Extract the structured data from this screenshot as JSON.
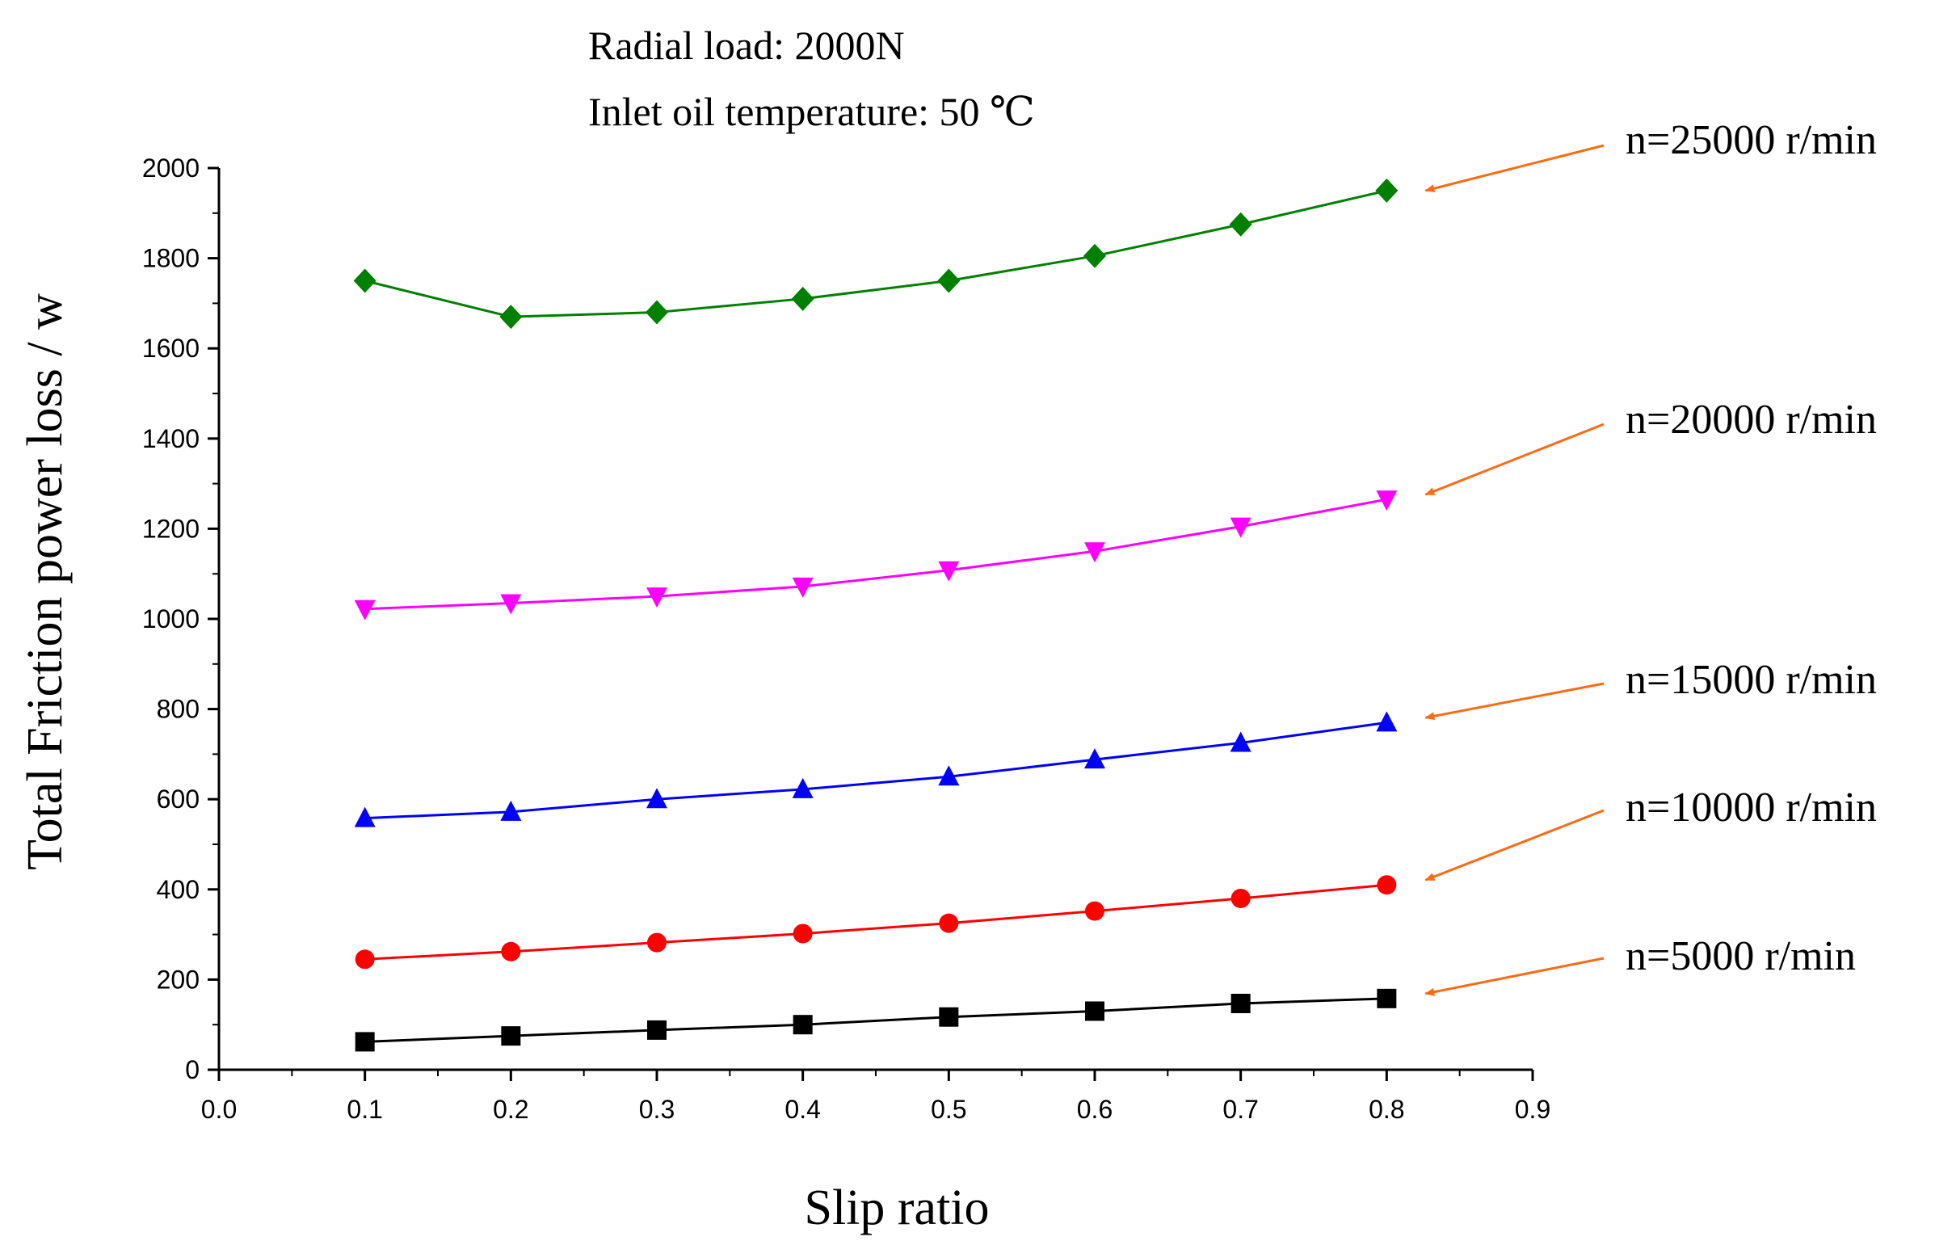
{
  "chart_data": {
    "type": "line",
    "title": "",
    "xlabel": "Slip ratio",
    "ylabel": "Total Friction power loss / w",
    "xlim": [
      0.0,
      0.9
    ],
    "ylim": [
      0,
      2000
    ],
    "x_ticks": [
      0.0,
      0.1,
      0.2,
      0.3,
      0.4,
      0.5,
      0.6,
      0.7,
      0.8,
      0.9
    ],
    "x_tick_labels": [
      "0.0",
      "0.1",
      "0.2",
      "0.3",
      "0.4",
      "0.5",
      "0.6",
      "0.7",
      "0.8",
      "0.9"
    ],
    "y_ticks": [
      0,
      200,
      400,
      600,
      800,
      1000,
      1200,
      1400,
      1600,
      1800,
      2000
    ],
    "y_tick_labels": [
      "0",
      "200",
      "400",
      "600",
      "800",
      "1000",
      "1200",
      "1400",
      "1600",
      "1800",
      "2000"
    ],
    "grid": false,
    "conditions": [
      "Radial load: 2000N",
      "Inlet oil temperature: 50 ℃"
    ],
    "x": [
      0.1,
      0.2,
      0.3,
      0.4,
      0.5,
      0.6,
      0.7,
      0.8
    ],
    "series": [
      {
        "name": "n=5000 r/min",
        "label": "n=5000 r/min",
        "color": "#000000",
        "marker": "square",
        "values": [
          62,
          75,
          88,
          100,
          117,
          130,
          147,
          158
        ]
      },
      {
        "name": "n=10000 r/min",
        "label": "n=10000 r/min",
        "color": "#ff0000",
        "marker": "circle",
        "values": [
          245,
          262,
          282,
          302,
          325,
          352,
          380,
          410
        ]
      },
      {
        "name": "n=15000 r/min",
        "label": "n=15000 r/min",
        "color": "#0000ff",
        "marker": "triangle-up",
        "values": [
          558,
          572,
          600,
          622,
          650,
          688,
          725,
          770
        ]
      },
      {
        "name": "n=20000 r/min",
        "label": "n=20000 r/min",
        "color": "#ff00ff",
        "marker": "triangle-down",
        "values": [
          1022,
          1035,
          1050,
          1072,
          1108,
          1150,
          1205,
          1265
        ]
      },
      {
        "name": "n=25000 r/min",
        "label": "n=25000 r/min",
        "color": "#008000",
        "marker": "diamond",
        "values": [
          1750,
          1670,
          1680,
          1710,
          1750,
          1805,
          1875,
          1950
        ]
      }
    ],
    "annotation_arrow_color": "#ff6a13"
  }
}
